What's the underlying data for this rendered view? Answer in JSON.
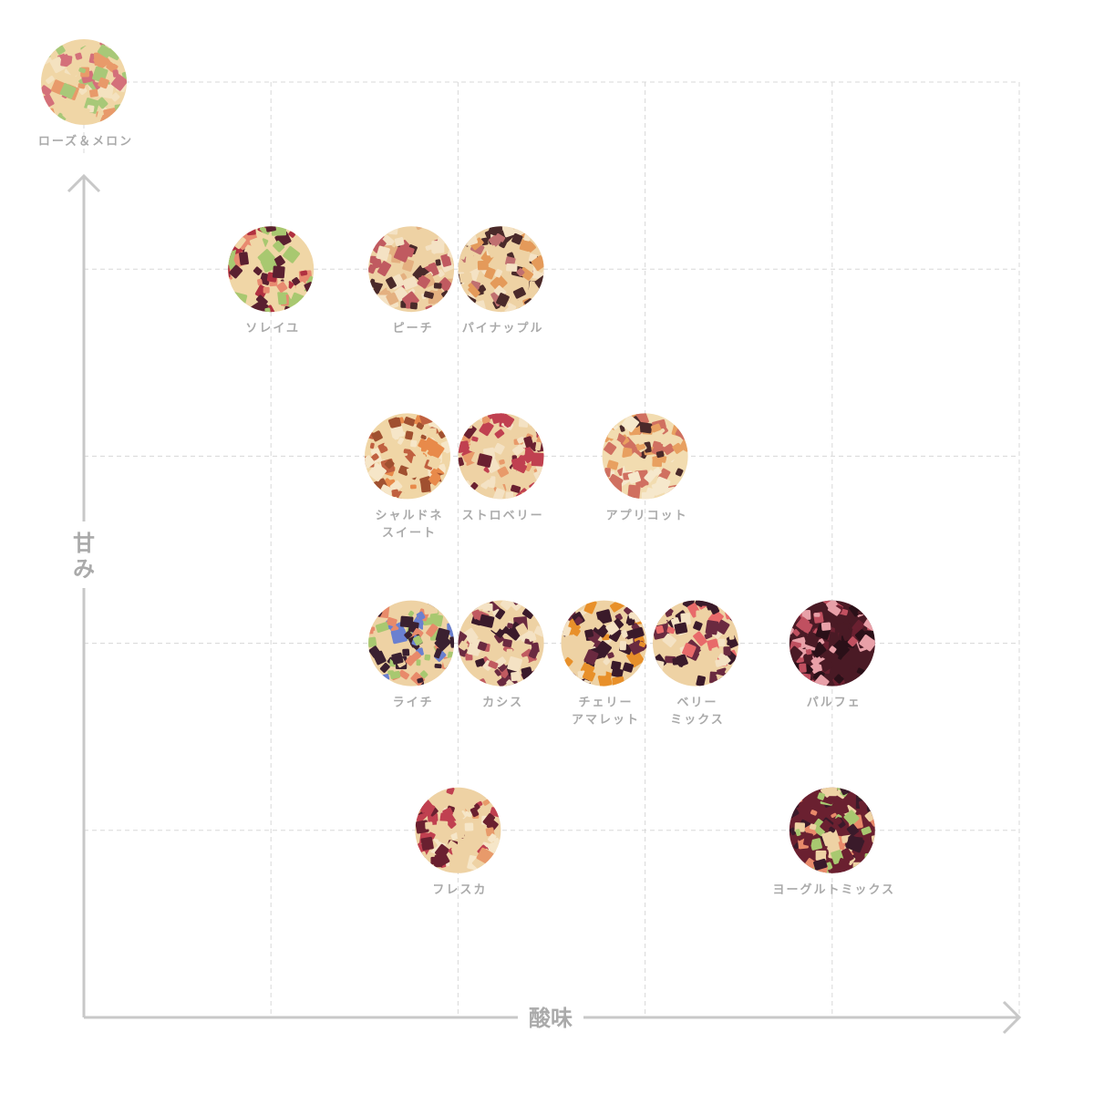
{
  "chart_data": {
    "type": "scatter",
    "xlabel": "酸味",
    "ylabel": "甘み",
    "xlim": [
      0,
      5
    ],
    "ylim": [
      0,
      5
    ],
    "grid": true,
    "axis_color": "#c8c8c8",
    "grid_color": "#d8d8d8",
    "label_color": "#aaaaaa",
    "points": [
      {
        "label": [
          "ローズ＆メロン"
        ],
        "x": 0,
        "y": 5,
        "palette": [
          "#f0d6a6",
          "#e89a6a",
          "#d4707a",
          "#a8c878",
          "#f4e2c0"
        ]
      },
      {
        "label": [
          "ソレイユ"
        ],
        "x": 1,
        "y": 4,
        "palette": [
          "#f0d6a6",
          "#e88a70",
          "#b03040",
          "#a8c870",
          "#5a2030"
        ]
      },
      {
        "label": [
          "ピーチ"
        ],
        "x": 1.75,
        "y": 4,
        "palette": [
          "#eed2a4",
          "#c05a60",
          "#e4b080",
          "#4a2a2a",
          "#f4e2c4"
        ]
      },
      {
        "label": [
          "パイナップル"
        ],
        "x": 2.23,
        "y": 4,
        "palette": [
          "#eed2a4",
          "#e49a5a",
          "#c07070",
          "#4a2a2a",
          "#f4e2c4"
        ]
      },
      {
        "label": [
          "シャルドネ",
          "スイート"
        ],
        "x": 1.73,
        "y": 3,
        "palette": [
          "#f0d6a6",
          "#e88a4a",
          "#c06040",
          "#f6e6c8",
          "#a05030"
        ]
      },
      {
        "label": [
          "ストロベリー"
        ],
        "x": 2.23,
        "y": 3,
        "palette": [
          "#eed2a4",
          "#c04050",
          "#6a2030",
          "#e89a6a",
          "#f4e2c4"
        ]
      },
      {
        "label": [
          "アプリコット"
        ],
        "x": 3,
        "y": 3,
        "palette": [
          "#f2dcb0",
          "#e8a060",
          "#4a2a2a",
          "#f6e8cc",
          "#d07060"
        ]
      },
      {
        "label": [
          "ライチ"
        ],
        "x": 1.75,
        "y": 2,
        "palette": [
          "#eed2a4",
          "#6a80d0",
          "#a8c870",
          "#3a2030",
          "#e88a6a"
        ]
      },
      {
        "label": [
          "カシス"
        ],
        "x": 2.23,
        "y": 2,
        "palette": [
          "#eed2a4",
          "#3a1a2a",
          "#6a2a40",
          "#f4e2c4",
          "#c05a60"
        ]
      },
      {
        "label": [
          "チェリー",
          "アマレット"
        ],
        "x": 2.78,
        "y": 2,
        "palette": [
          "#eed2a4",
          "#3a1a2a",
          "#e8902a",
          "#6a2a40",
          "#f4e2c4"
        ]
      },
      {
        "label": [
          "ベリー",
          "ミックス"
        ],
        "x": 3.27,
        "y": 2,
        "palette": [
          "#eed2a4",
          "#e86a6a",
          "#3a1a2a",
          "#6a2a40",
          "#f4e2c4"
        ]
      },
      {
        "label": [
          "パルフェ"
        ],
        "x": 4,
        "y": 2,
        "palette": [
          "#4a1a25",
          "#6a2030",
          "#c05060",
          "#e8a0a8",
          "#2a1018"
        ]
      },
      {
        "label": [
          "フレスカ"
        ],
        "x": 2,
        "y": 1,
        "palette": [
          "#eed2a4",
          "#6a2030",
          "#c04050",
          "#f6e6c8",
          "#e89a6a"
        ]
      },
      {
        "label": [
          "ヨーグルトミックス"
        ],
        "x": 4,
        "y": 1,
        "palette": [
          "#6a2030",
          "#e88a6a",
          "#a8c870",
          "#eed2a4",
          "#3a1a2a"
        ]
      }
    ]
  }
}
